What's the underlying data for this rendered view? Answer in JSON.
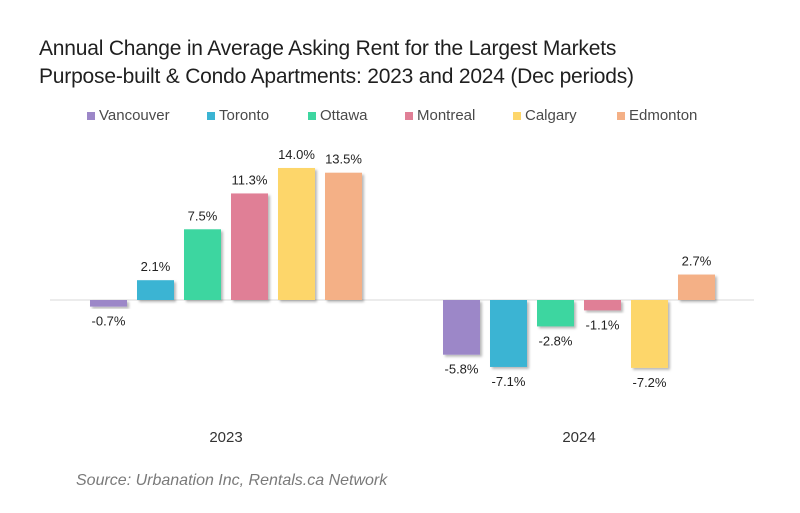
{
  "chart_data": {
    "type": "bar",
    "title": "Annual Change in Average Asking Rent for the Largest Markets",
    "subtitle": "Purpose-built & Condo Apartments: 2023 and 2024 (Dec periods)",
    "categories": [
      "2023",
      "2024"
    ],
    "series": [
      {
        "name": "Vancouver",
        "color": "#9c87c8",
        "values": [
          -0.7,
          -5.8
        ],
        "labels": [
          "-0.7%",
          "-5.8%"
        ]
      },
      {
        "name": "Toronto",
        "color": "#3bb4d3",
        "values": [
          2.1,
          -7.1
        ],
        "labels": [
          "2.1%",
          "-7.1%"
        ]
      },
      {
        "name": "Ottawa",
        "color": "#3ed6a0",
        "values": [
          7.5,
          -2.8
        ],
        "labels": [
          "7.5%",
          "-2.8%"
        ]
      },
      {
        "name": "Montreal",
        "color": "#e07f96",
        "values": [
          11.3,
          -1.1
        ],
        "labels": [
          "11.3%",
          "-1.1%"
        ]
      },
      {
        "name": "Calgary",
        "color": "#fdd66b",
        "values": [
          14.0,
          -7.2
        ],
        "labels": [
          "14.0%",
          "-7.2%"
        ]
      },
      {
        "name": "Edmonton",
        "color": "#f4b086",
        "values": [
          13.5,
          2.7
        ],
        "labels": [
          "13.5%",
          "2.7%"
        ]
      }
    ],
    "xlabel": "",
    "ylabel": "",
    "ylim": [
      -8,
      15
    ],
    "grid": false,
    "legend": "top",
    "data_labels": true,
    "source": "Source: Urbanation Inc, Rentals.ca Network"
  }
}
